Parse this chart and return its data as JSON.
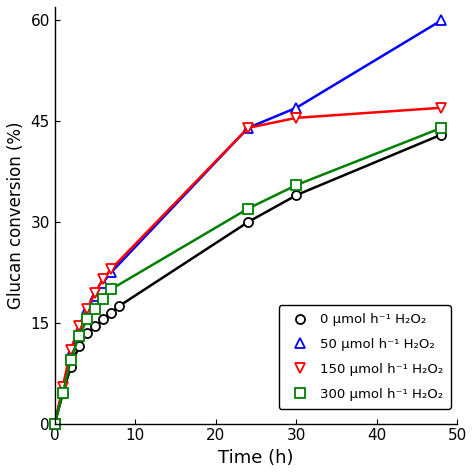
{
  "series": [
    {
      "label": "0 μmol h⁻¹ H₂O₂",
      "color": "black",
      "marker": "o",
      "x_pts": [
        0,
        1,
        2,
        3,
        4,
        5,
        6,
        7,
        8,
        24,
        30,
        48
      ],
      "y_pts": [
        0,
        4.5,
        8.5,
        11.5,
        13.5,
        14.5,
        15.5,
        16.5,
        17.5,
        30,
        34,
        43
      ]
    },
    {
      "label": "50 μmol h⁻¹ H₂O₂",
      "color": "blue",
      "marker": "^",
      "x_pts": [
        0,
        1,
        2,
        3,
        4,
        5,
        6,
        7,
        24,
        30,
        48
      ],
      "y_pts": [
        0,
        5,
        10.5,
        14,
        17,
        19,
        21,
        22.5,
        44,
        47,
        60
      ]
    },
    {
      "label": "150 μmol h⁻¹ H₂O₂",
      "color": "red",
      "marker": "v",
      "x_pts": [
        0,
        1,
        2,
        3,
        4,
        5,
        6,
        7,
        24,
        30,
        48
      ],
      "y_pts": [
        0,
        5.5,
        11,
        14.5,
        17,
        19.5,
        21.5,
        23,
        44,
        45.5,
        47
      ]
    },
    {
      "label": "300 μmol h⁻¹ H₂O₂",
      "color": "green",
      "marker": "s",
      "x_pts": [
        0,
        1,
        2,
        3,
        4,
        5,
        6,
        7,
        24,
        30,
        48
      ],
      "y_pts": [
        0,
        4.5,
        9.5,
        13,
        15.5,
        17,
        18.5,
        20,
        32,
        35.5,
        44
      ]
    }
  ],
  "xlabel": "Time (h)",
  "ylabel": "Glucan conversion (%)",
  "xlim": [
    0,
    50
  ],
  "ylim": [
    0,
    62
  ],
  "yticks": [
    0,
    15,
    30,
    45,
    60
  ],
  "xticks": [
    0,
    10,
    20,
    30,
    40,
    50
  ],
  "linewidth": 1.8,
  "markersize": 6.5
}
